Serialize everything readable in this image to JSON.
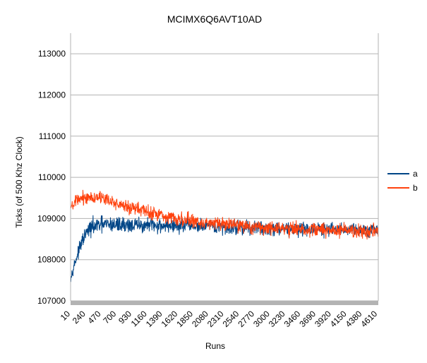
{
  "chart_data": {
    "type": "line",
    "title": "MCIMX6Q6AVT10AD",
    "xlabel": "Runs",
    "ylabel": "Ticks (of 500 Khz Clock)",
    "ylim": [
      107000,
      113500
    ],
    "yticks": [
      107000,
      108000,
      109000,
      110000,
      111000,
      112000,
      113000
    ],
    "ytick_labels": [
      "107000",
      "108000",
      "109000",
      "110000",
      "111000",
      "112000",
      "113000"
    ],
    "xlim": [
      10,
      4620
    ],
    "xticks": [
      10,
      240,
      470,
      700,
      930,
      1160,
      1390,
      1620,
      1850,
      2080,
      2310,
      2540,
      2770,
      3000,
      3230,
      3460,
      3690,
      3920,
      4150,
      4380,
      4610
    ],
    "xtick_labels": [
      "10",
      "240",
      "470",
      "700",
      "930",
      "1160",
      "1390",
      "1620",
      "1850",
      "2080",
      "2310",
      "2540",
      "2770",
      "3000",
      "3230",
      "3460",
      "3690",
      "3920",
      "4150",
      "4380",
      "4610"
    ],
    "grid": true,
    "legend_position": "right",
    "series": [
      {
        "name": "a",
        "color": "#004586",
        "x": [
          10,
          50,
          100,
          150,
          200,
          250,
          300,
          350,
          400,
          450,
          500,
          600,
          700,
          800,
          900,
          1000,
          1200,
          1400,
          1600,
          1800,
          2000,
          2300,
          2600,
          2900,
          3200,
          3500,
          3800,
          4100,
          4400,
          4620
        ],
        "values": [
          107550,
          107800,
          108050,
          108300,
          108500,
          108650,
          108750,
          108800,
          108820,
          108840,
          108850,
          108850,
          108850,
          108850,
          108840,
          108830,
          108830,
          108830,
          108820,
          108820,
          108800,
          108790,
          108780,
          108770,
          108760,
          108750,
          108740,
          108740,
          108730,
          108730
        ],
        "noise": [
          150,
          180,
          200,
          220,
          250,
          280,
          300,
          300,
          300,
          300,
          300,
          300,
          300,
          300,
          280,
          280,
          280,
          270,
          270,
          270,
          260,
          260,
          260,
          260,
          250,
          250,
          250,
          250,
          250,
          250
        ]
      },
      {
        "name": "b",
        "color": "#ff420e",
        "x": [
          10,
          100,
          200,
          300,
          400,
          500,
          600,
          800,
          1000,
          1200,
          1400,
          1600,
          1800,
          2000,
          2300,
          2600,
          2900,
          3200,
          3500,
          3800,
          4100,
          4400,
          4620
        ],
        "values": [
          109250,
          109420,
          109500,
          109530,
          109520,
          109480,
          109420,
          109320,
          109230,
          109150,
          109080,
          109000,
          108950,
          108900,
          108850,
          108810,
          108780,
          108760,
          108740,
          108720,
          108710,
          108700,
          108700
        ],
        "noise": [
          200,
          220,
          230,
          230,
          230,
          230,
          230,
          240,
          240,
          250,
          250,
          250,
          250,
          250,
          250,
          260,
          260,
          260,
          260,
          260,
          260,
          260,
          260
        ]
      }
    ]
  }
}
